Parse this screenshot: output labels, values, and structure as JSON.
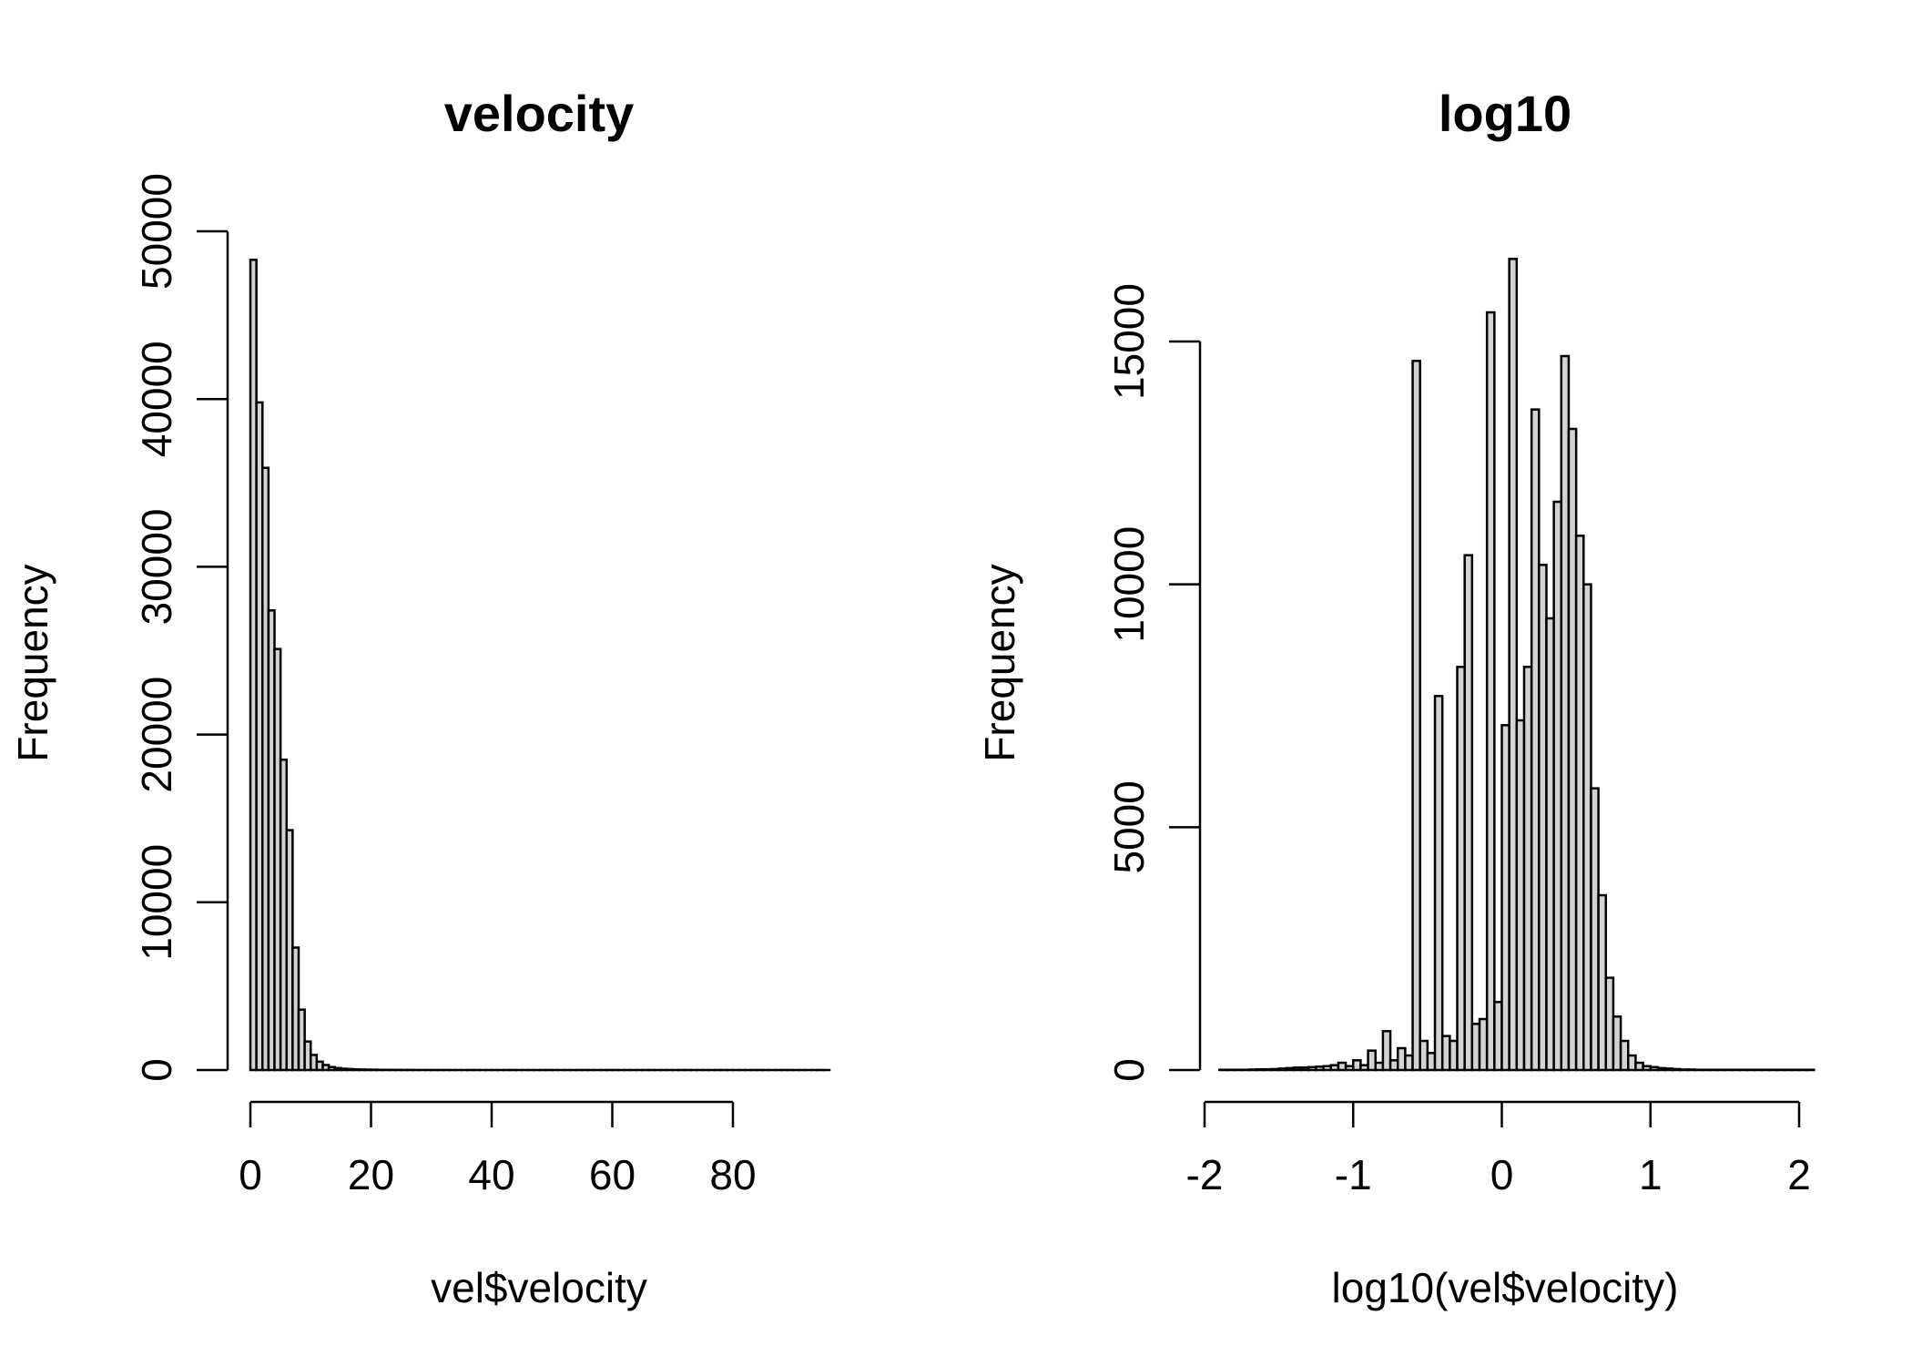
{
  "chart_data": [
    {
      "type": "bar",
      "title": "velocity",
      "xlabel": "vel$velocity",
      "ylabel": "Frequency",
      "xlim": [
        -1,
        96
      ],
      "ylim": [
        0,
        50000
      ],
      "xticks": [
        0,
        20,
        40,
        60,
        80
      ],
      "xtick_labels": [
        "0",
        "20",
        "40",
        "60",
        "80"
      ],
      "yticks": [
        0,
        10000,
        20000,
        30000,
        40000,
        50000
      ],
      "ytick_labels": [
        "0",
        "10000",
        "20000",
        "30000",
        "40000",
        "50000"
      ],
      "bin_start": 0,
      "bin_width": 1,
      "values": [
        48300,
        39800,
        35900,
        27400,
        25100,
        18500,
        14300,
        7300,
        3600,
        1700,
        900,
        500,
        300,
        180,
        120,
        80,
        60,
        40,
        30,
        25,
        20,
        15,
        12,
        10,
        8,
        6,
        5,
        4,
        3,
        3,
        2,
        2,
        2,
        1,
        1,
        1,
        1,
        1,
        1,
        1,
        1,
        1,
        1,
        1,
        1,
        1,
        1,
        1,
        1,
        1,
        1,
        1,
        1,
        1,
        1,
        1,
        1,
        1,
        1,
        1,
        1,
        1,
        1,
        1,
        1,
        1,
        1,
        1,
        1,
        1,
        1,
        1,
        1,
        1,
        1,
        1,
        1,
        1,
        1,
        1,
        1,
        1,
        1,
        1,
        1,
        1,
        1,
        1,
        1,
        1,
        1,
        1,
        1,
        1,
        1,
        1
      ]
    },
    {
      "type": "bar",
      "title": "log10",
      "xlabel": "log10(vel$velocity)",
      "ylabel": "Frequency",
      "xlim": [
        -2,
        2
      ],
      "ylim": [
        0,
        16700
      ],
      "xticks": [
        -2,
        -1,
        0,
        1,
        2
      ],
      "xtick_labels": [
        "-2",
        "-1",
        "0",
        "1",
        "2"
      ],
      "yticks": [
        0,
        5000,
        10000,
        15000
      ],
      "ytick_labels": [
        "0",
        "5000",
        "10000",
        "15000"
      ],
      "bin_start": -1.9,
      "bin_width": 0.05,
      "values": [
        5,
        5,
        5,
        5,
        10,
        15,
        15,
        20,
        30,
        40,
        50,
        50,
        60,
        70,
        80,
        100,
        150,
        80,
        200,
        100,
        400,
        150,
        800,
        200,
        450,
        300,
        14600,
        600,
        350,
        7700,
        700,
        600,
        8300,
        10600,
        950,
        1050,
        15600,
        1400,
        7100,
        16700,
        7200,
        8300,
        13600,
        10400,
        9300,
        11700,
        14700,
        13200,
        11000,
        10000,
        5800,
        3600,
        1900,
        1100,
        600,
        300,
        150,
        80,
        60,
        40,
        30,
        20,
        10,
        10,
        5,
        5,
        5,
        5,
        5,
        5,
        5,
        5,
        5,
        5,
        5,
        5,
        5,
        5,
        5,
        5
      ]
    }
  ]
}
